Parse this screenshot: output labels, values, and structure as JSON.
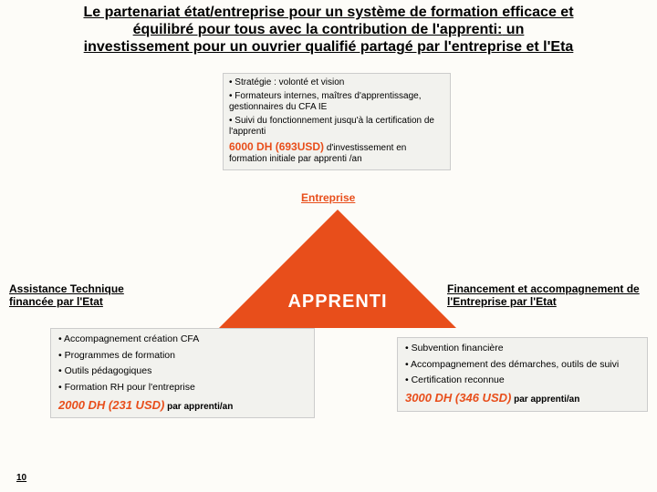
{
  "title_line1": "Le partenariat état/entreprise pour un système de formation efficace et",
  "title_line2": "équilibré  pour tous avec la contribution de l'apprenti:",
  "title_line3_a": " un",
  "title_line3_b": "investissement pour un ouvrier qualifié partagé par l'entreprise et l'Eta",
  "top_box": {
    "b1": "• Stratégie : volonté et vision",
    "b2": "• Formateurs internes, maîtres d'apprentissage, gestionnaires du CFA IE",
    "b3": "• Suivi du fonctionnement jusqu'à la certification de l'apprenti",
    "amount": "6000 DH (693USD)",
    "amount_sub": " d'investissement en formation initiale par apprenti /an"
  },
  "entreprise_label": "Entreprise",
  "triangle_color": "#e84e1b",
  "apprenti_label": "APPRENTI",
  "left_head": "Assistance Technique financée par l'Etat",
  "right_head": "Financement et accompagnement de l'Entreprise par l'Etat",
  "left_box": {
    "b1": "• Accompagnement création CFA",
    "b2": "• Programmes de formation",
    "b3": "• Outils pédagogiques",
    "b4": "• Formation RH pour l'entreprise",
    "amount": "2000 DH (231 USD)",
    "amount_sub": " par apprenti/an"
  },
  "right_box": {
    "b1": "• Subvention financière",
    "b2": "• Accompagnement des démarches, outils de suivi",
    "b3": "• Certification reconnue",
    "amount": "3000 DH (346 USD)",
    "amount_sub": " par apprenti/an"
  },
  "page_number": "10"
}
